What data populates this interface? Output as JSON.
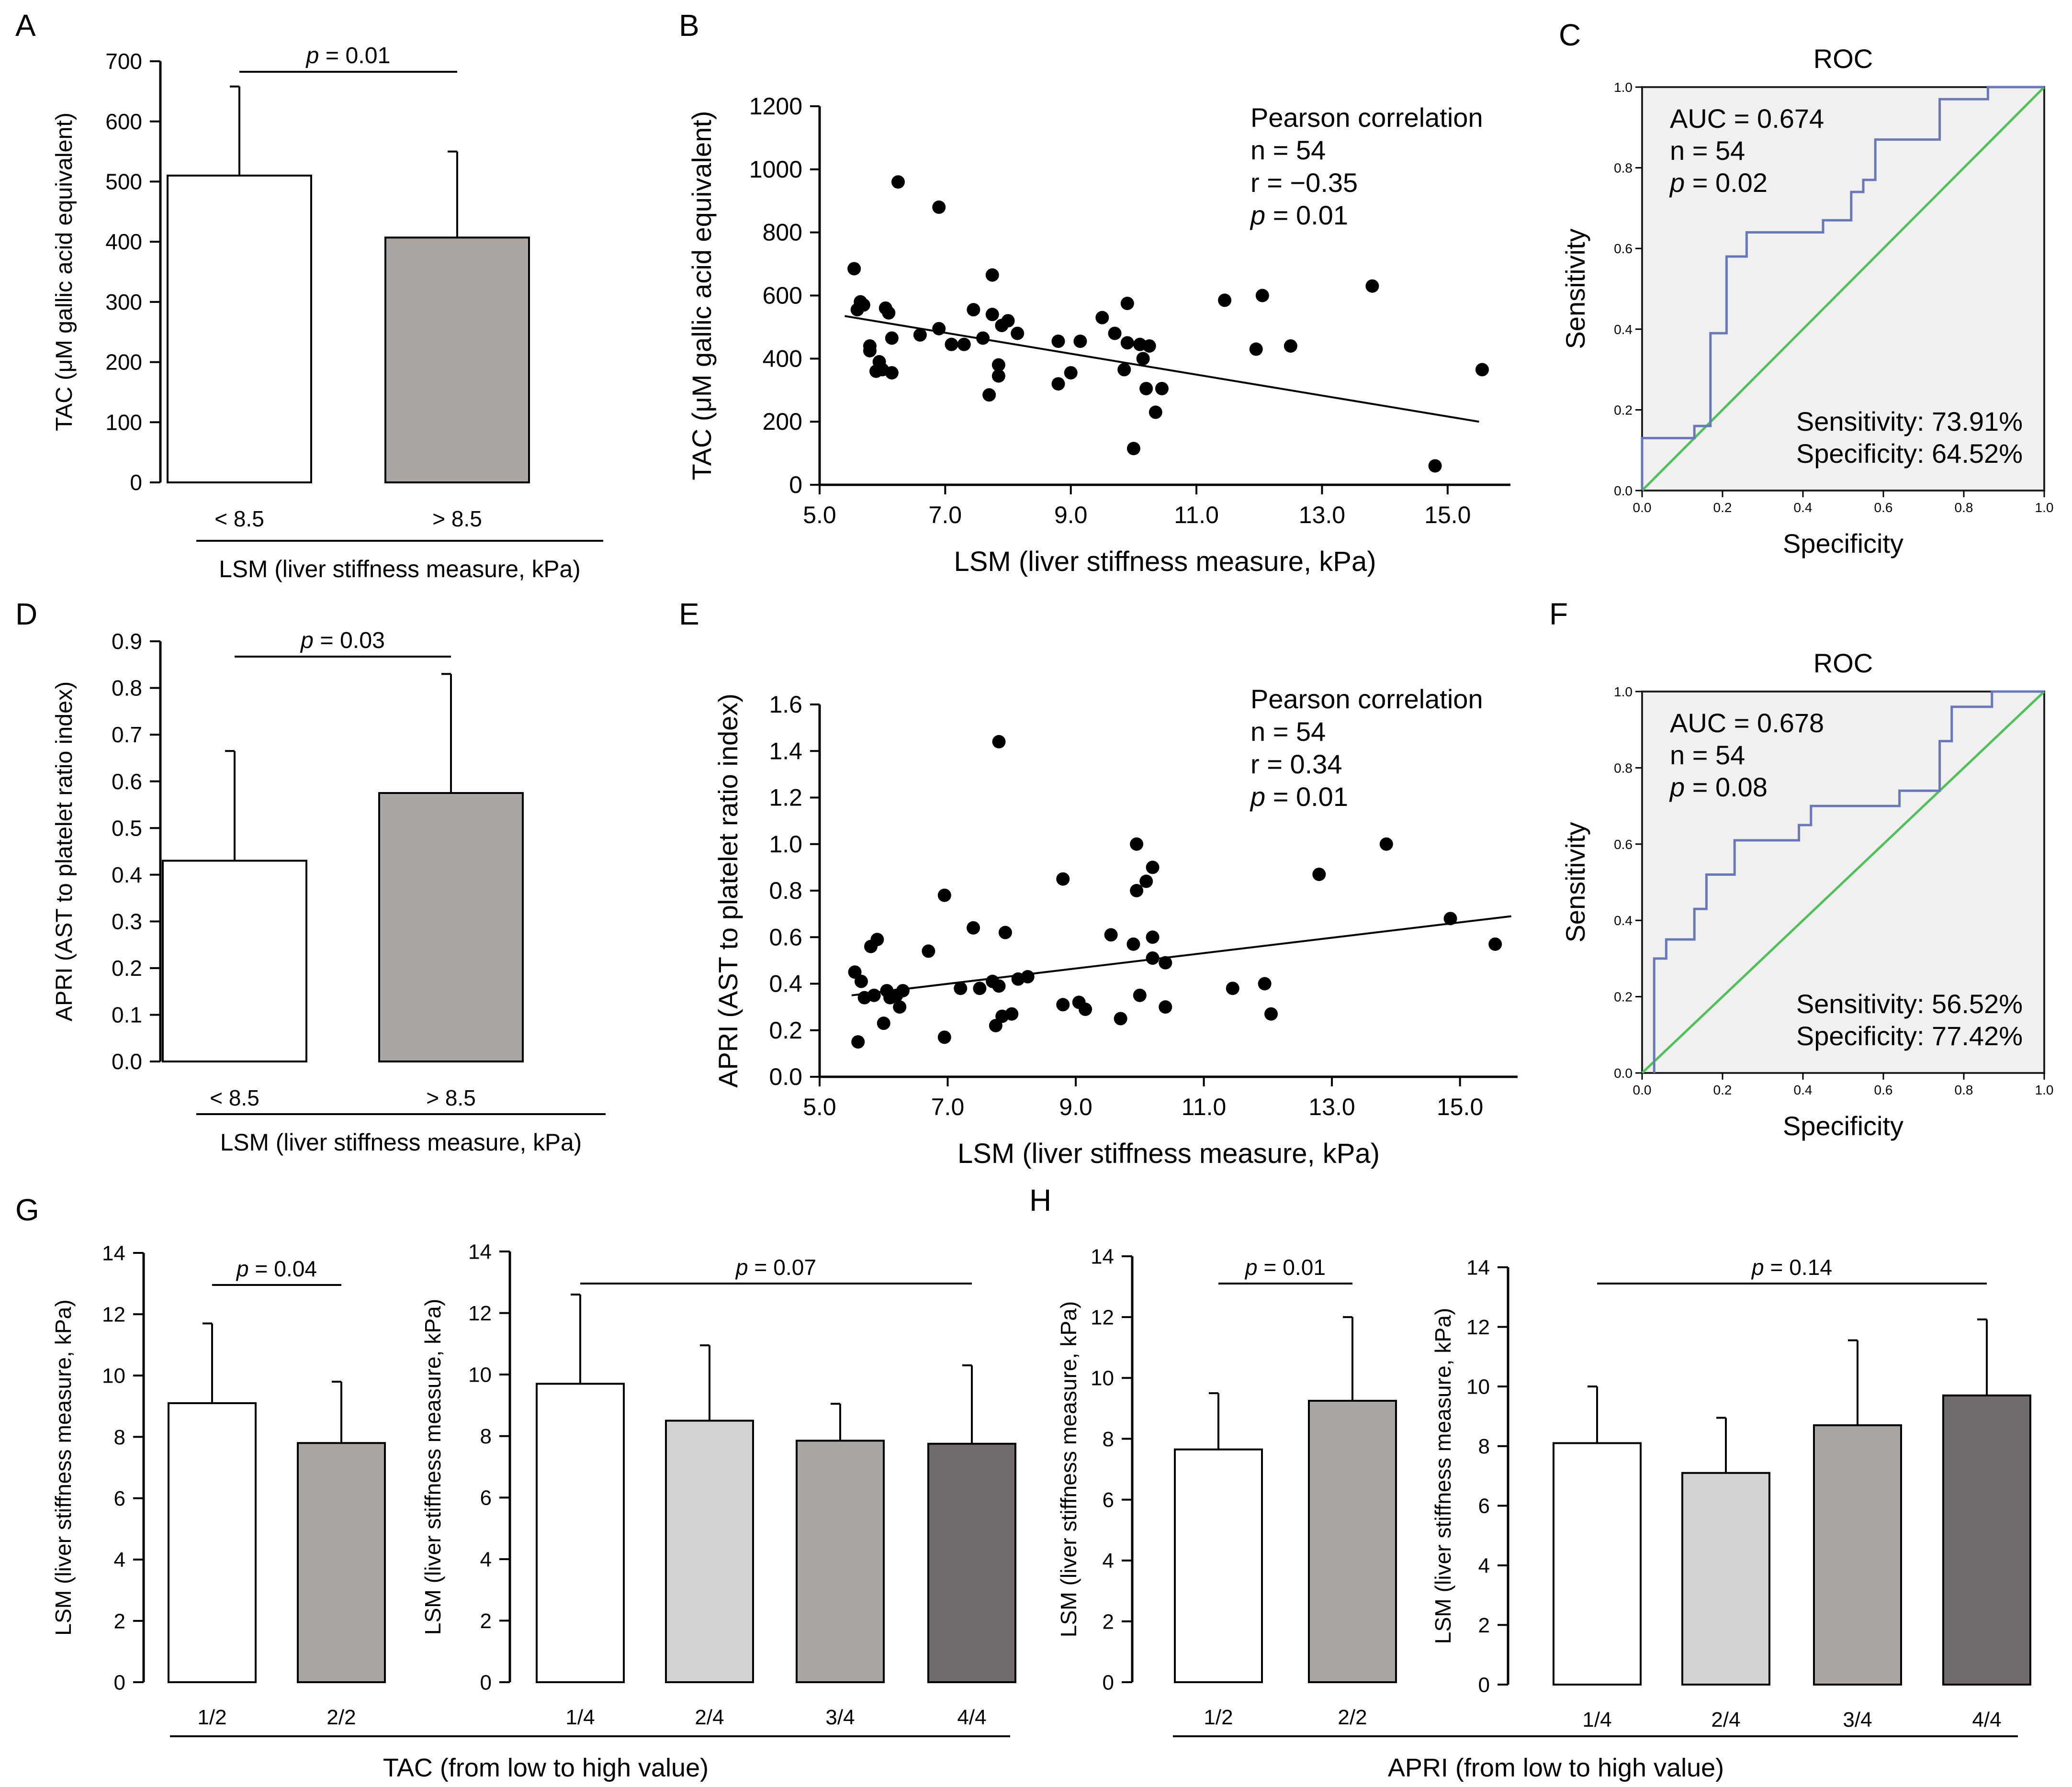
{
  "colors": {
    "white": "#ffffff",
    "gray": "#aaa6a4",
    "light_gray": "#d3d1d1",
    "dark_gray": "#716c6b",
    "roc_line": "#6b78b8",
    "ref_line": "#52c05a",
    "roc_bg": "#f0f0f0"
  },
  "chart_data": [
    {
      "id": "A",
      "type": "bar",
      "panel_label": "A",
      "categories": [
        "< 8.5",
        "> 8.5"
      ],
      "values": [
        510,
        407
      ],
      "errors": [
        148,
        143
      ],
      "ylabel": "TAC (μM gallic acid equivalent)",
      "xlabel": "LSM (liver stiffness measure, kPa)",
      "yticks": [
        "0",
        "100",
        "200",
        "300",
        "400",
        "500",
        "600",
        "700"
      ],
      "ylim": [
        0,
        700
      ],
      "sig": {
        "p_label": "p",
        "p_value": " = 0.01",
        "from": 0,
        "to": 1
      }
    },
    {
      "id": "B",
      "type": "scatter",
      "panel_label": "B",
      "xlabel": "LSM (liver stiffness measure, kPa)",
      "ylabel": "TAC (μM gallic acid equivalent)",
      "xlim": [
        5,
        16
      ],
      "ylim": [
        0,
        1200
      ],
      "xticks": [
        "5.0",
        "7.0",
        "9.0",
        "11.0",
        "13.0",
        "15.0"
      ],
      "yticks": [
        "0",
        "200",
        "400",
        "600",
        "800",
        "1000",
        "1200"
      ],
      "annotation": {
        "title": "Pearson correlation",
        "n": "n = 54",
        "r": "r = −0.35",
        "p_label": "p",
        "p_value": " = 0.01"
      },
      "fit": [
        [
          5.4,
          535
        ],
        [
          15.5,
          200
        ]
      ],
      "points": [
        [
          5.55,
          685
        ],
        [
          5.6,
          555
        ],
        [
          5.65,
          580
        ],
        [
          5.7,
          570
        ],
        [
          5.8,
          440
        ],
        [
          5.8,
          425
        ],
        [
          5.9,
          360
        ],
        [
          5.95,
          390
        ],
        [
          6.0,
          365
        ],
        [
          6.05,
          560
        ],
        [
          6.1,
          545
        ],
        [
          6.15,
          465
        ],
        [
          6.15,
          355
        ],
        [
          6.25,
          960
        ],
        [
          6.6,
          475
        ],
        [
          6.9,
          880
        ],
        [
          6.9,
          495
        ],
        [
          7.1,
          445
        ],
        [
          7.3,
          445
        ],
        [
          7.45,
          555
        ],
        [
          7.6,
          465
        ],
        [
          7.7,
          285
        ],
        [
          7.75,
          540
        ],
        [
          7.75,
          665
        ],
        [
          7.85,
          380
        ],
        [
          7.85,
          345
        ],
        [
          7.9,
          505
        ],
        [
          8.0,
          520
        ],
        [
          8.15,
          480
        ],
        [
          8.8,
          455
        ],
        [
          8.8,
          320
        ],
        [
          9.0,
          355
        ],
        [
          9.15,
          455
        ],
        [
          9.5,
          530
        ],
        [
          9.7,
          480
        ],
        [
          9.85,
          365
        ],
        [
          9.9,
          575
        ],
        [
          9.9,
          450
        ],
        [
          10.0,
          115
        ],
        [
          10.1,
          445
        ],
        [
          10.15,
          400
        ],
        [
          10.2,
          305
        ],
        [
          10.25,
          440
        ],
        [
          10.35,
          230
        ],
        [
          10.45,
          305
        ],
        [
          11.45,
          585
        ],
        [
          11.95,
          430
        ],
        [
          12.05,
          600
        ],
        [
          12.5,
          440
        ],
        [
          13.8,
          630
        ],
        [
          14.8,
          60
        ],
        [
          15.55,
          365
        ]
      ]
    },
    {
      "id": "C",
      "type": "line",
      "panel_label": "C",
      "title": "ROC",
      "xlabel": "Specificity",
      "ylabel": "Sensitivity",
      "xlim": [
        0,
        1
      ],
      "ylim": [
        0,
        1
      ],
      "ticks": [
        "0.0",
        "0.2",
        "0.4",
        "0.6",
        "0.8",
        "1.0"
      ],
      "auc": "AUC = 0.674",
      "n": "n = 54",
      "p_label": "p",
      "p_value": " = 0.02",
      "sensitivity": "Sensitivity:  73.91%",
      "specificity": "Specificity:  64.52%",
      "curve": [
        [
          0,
          0
        ],
        [
          0,
          0.13
        ],
        [
          0.13,
          0.13
        ],
        [
          0.13,
          0.16
        ],
        [
          0.17,
          0.16
        ],
        [
          0.17,
          0.39
        ],
        [
          0.21,
          0.39
        ],
        [
          0.21,
          0.58
        ],
        [
          0.26,
          0.58
        ],
        [
          0.26,
          0.64
        ],
        [
          0.45,
          0.64
        ],
        [
          0.45,
          0.67
        ],
        [
          0.52,
          0.67
        ],
        [
          0.52,
          0.74
        ],
        [
          0.55,
          0.74
        ],
        [
          0.55,
          0.77
        ],
        [
          0.58,
          0.77
        ],
        [
          0.58,
          0.87
        ],
        [
          0.74,
          0.87
        ],
        [
          0.74,
          0.97
        ],
        [
          0.86,
          0.97
        ],
        [
          0.86,
          1.0
        ],
        [
          1,
          1
        ]
      ]
    },
    {
      "id": "D",
      "type": "bar",
      "panel_label": "D",
      "categories": [
        "< 8.5",
        "> 8.5"
      ],
      "values": [
        0.43,
        0.575
      ],
      "errors": [
        0.235,
        0.255
      ],
      "ylabel": "APRI (AST to platelet ratio index)",
      "xlabel": "LSM (liver stiffness measure, kPa)",
      "yticks": [
        "0.0",
        "0.1",
        "0.2",
        "0.3",
        "0.4",
        "0.5",
        "0.6",
        "0.7",
        "0.8",
        "0.9"
      ],
      "ylim": [
        0,
        0.9
      ],
      "sig": {
        "p_label": "p",
        "p_value": " = 0.03",
        "from": 0,
        "to": 1
      }
    },
    {
      "id": "E",
      "type": "scatter",
      "panel_label": "E",
      "xlabel": "LSM (liver stiffness measure, kPa)",
      "ylabel": "APRI (AST to platelet ratio index)",
      "xlim": [
        5,
        15.9
      ],
      "ylim": [
        0,
        1.6
      ],
      "xticks": [
        "5.0",
        "7.0",
        "9.0",
        "11.0",
        "13.0",
        "15.0"
      ],
      "yticks": [
        "0.0",
        "0.2",
        "0.4",
        "0.6",
        "0.8",
        "1.0",
        "1.2",
        "1.4",
        "1.6"
      ],
      "annotation": {
        "title": "Pearson correlation",
        "n": "n = 54",
        "r": "r = 0.34",
        "p_label": "p",
        "p_value": " = 0.01"
      },
      "fit": [
        [
          5.5,
          0.35
        ],
        [
          15.8,
          0.69
        ]
      ],
      "points": [
        [
          5.55,
          0.45
        ],
        [
          5.6,
          0.15
        ],
        [
          5.65,
          0.41
        ],
        [
          5.7,
          0.34
        ],
        [
          5.8,
          0.56
        ],
        [
          5.85,
          0.35
        ],
        [
          5.9,
          0.59
        ],
        [
          6.0,
          0.23
        ],
        [
          6.05,
          0.37
        ],
        [
          6.1,
          0.34
        ],
        [
          6.2,
          0.35
        ],
        [
          6.25,
          0.3
        ],
        [
          6.3,
          0.37
        ],
        [
          6.7,
          0.54
        ],
        [
          6.95,
          0.17
        ],
        [
          6.95,
          0.78
        ],
        [
          7.2,
          0.38
        ],
        [
          7.4,
          0.64
        ],
        [
          7.5,
          0.38
        ],
        [
          7.7,
          0.41
        ],
        [
          7.75,
          0.22
        ],
        [
          7.8,
          1.44
        ],
        [
          7.8,
          0.39
        ],
        [
          7.85,
          0.26
        ],
        [
          7.9,
          0.62
        ],
        [
          8.0,
          0.27
        ],
        [
          8.1,
          0.42
        ],
        [
          8.25,
          0.43
        ],
        [
          8.8,
          0.85
        ],
        [
          8.8,
          0.31
        ],
        [
          9.05,
          0.32
        ],
        [
          9.15,
          0.29
        ],
        [
          9.55,
          0.61
        ],
        [
          9.7,
          0.25
        ],
        [
          9.9,
          0.57
        ],
        [
          9.95,
          1.0
        ],
        [
          9.95,
          0.8
        ],
        [
          10.0,
          0.35
        ],
        [
          10.1,
          0.84
        ],
        [
          10.2,
          0.6
        ],
        [
          10.2,
          0.9
        ],
        [
          10.2,
          0.51
        ],
        [
          10.4,
          0.49
        ],
        [
          10.4,
          0.3
        ],
        [
          11.45,
          0.38
        ],
        [
          11.95,
          0.4
        ],
        [
          12.05,
          0.27
        ],
        [
          12.8,
          0.87
        ],
        [
          13.85,
          1.0
        ],
        [
          14.85,
          0.68
        ],
        [
          15.55,
          0.57
        ]
      ]
    },
    {
      "id": "F",
      "type": "line",
      "panel_label": "F",
      "title": "ROC",
      "xlabel": "Specificity",
      "ylabel": "Sensitivity",
      "xlim": [
        0,
        1
      ],
      "ylim": [
        0,
        1
      ],
      "ticks": [
        "0.0",
        "0.2",
        "0.4",
        "0.6",
        "0.8",
        "1.0"
      ],
      "auc": "AUC = 0.678",
      "n": "n = 54",
      "p_label": "p",
      "p_value": " = 0.08",
      "sensitivity": "Sensitivity:  56.52%",
      "specificity": "Specificity:  77.42%",
      "curve": [
        [
          0.03,
          0
        ],
        [
          0.03,
          0.3
        ],
        [
          0.06,
          0.3
        ],
        [
          0.06,
          0.35
        ],
        [
          0.13,
          0.35
        ],
        [
          0.13,
          0.43
        ],
        [
          0.16,
          0.43
        ],
        [
          0.16,
          0.52
        ],
        [
          0.23,
          0.52
        ],
        [
          0.23,
          0.61
        ],
        [
          0.39,
          0.61
        ],
        [
          0.39,
          0.65
        ],
        [
          0.42,
          0.65
        ],
        [
          0.42,
          0.7
        ],
        [
          0.64,
          0.7
        ],
        [
          0.64,
          0.74
        ],
        [
          0.74,
          0.74
        ],
        [
          0.74,
          0.87
        ],
        [
          0.77,
          0.87
        ],
        [
          0.77,
          0.96
        ],
        [
          0.87,
          0.96
        ],
        [
          0.87,
          1.0
        ],
        [
          1,
          1
        ]
      ]
    },
    {
      "id": "G1",
      "type": "bar",
      "panel_label": "G",
      "categories": [
        "1/2",
        "2/2"
      ],
      "values": [
        9.1,
        7.8
      ],
      "errors": [
        2.6,
        2.0
      ],
      "ylabel": "LSM (liver stiffness measure, kPa)",
      "yticks": [
        "0",
        "2",
        "4",
        "6",
        "8",
        "10",
        "12",
        "14"
      ],
      "ylim": [
        0,
        14
      ],
      "sig": {
        "p_label": "p",
        "p_value": " = 0.04",
        "from": 0,
        "to": 1
      }
    },
    {
      "id": "G2",
      "type": "bar",
      "categories": [
        "1/4",
        "2/4",
        "3/4",
        "4/4"
      ],
      "values": [
        9.7,
        8.5,
        7.85,
        7.75
      ],
      "errors": [
        2.9,
        2.45,
        1.2,
        2.55
      ],
      "ylabel": "LSM (liver stiffness measure, kPa)",
      "yticks": [
        "0",
        "2",
        "4",
        "6",
        "8",
        "10",
        "12",
        "14"
      ],
      "ylim": [
        0,
        14
      ],
      "sig": {
        "p_label": "p",
        "p_value": " = 0.07",
        "from": 0,
        "to": 3
      },
      "group_xlabel": "TAC (from low to high value)"
    },
    {
      "id": "H1",
      "type": "bar",
      "panel_label": "H",
      "categories": [
        "1/2",
        "2/2"
      ],
      "values": [
        7.65,
        9.25
      ],
      "errors": [
        1.85,
        2.75
      ],
      "ylabel": "LSM (liver stiffness measure, kPa)",
      "yticks": [
        "0",
        "2",
        "4",
        "6",
        "8",
        "10",
        "12",
        "14"
      ],
      "ylim": [
        0,
        14
      ],
      "sig": {
        "p_label": "p",
        "p_value": " = 0.01",
        "from": 0,
        "to": 1
      }
    },
    {
      "id": "H2",
      "type": "bar",
      "categories": [
        "1/4",
        "2/4",
        "3/4",
        "4/4"
      ],
      "values": [
        8.1,
        7.1,
        8.7,
        9.7
      ],
      "errors": [
        1.9,
        1.85,
        2.85,
        2.55
      ],
      "ylabel": "LSM (liver stiffness measure, kPa)",
      "yticks": [
        "0",
        "2",
        "4",
        "6",
        "8",
        "10",
        "12",
        "14"
      ],
      "ylim": [
        0,
        14
      ],
      "sig": {
        "p_label": "p",
        "p_value": " = 0.14",
        "from": 0,
        "to": 3
      },
      "group_xlabel": "APRI (from low to high value)"
    }
  ]
}
